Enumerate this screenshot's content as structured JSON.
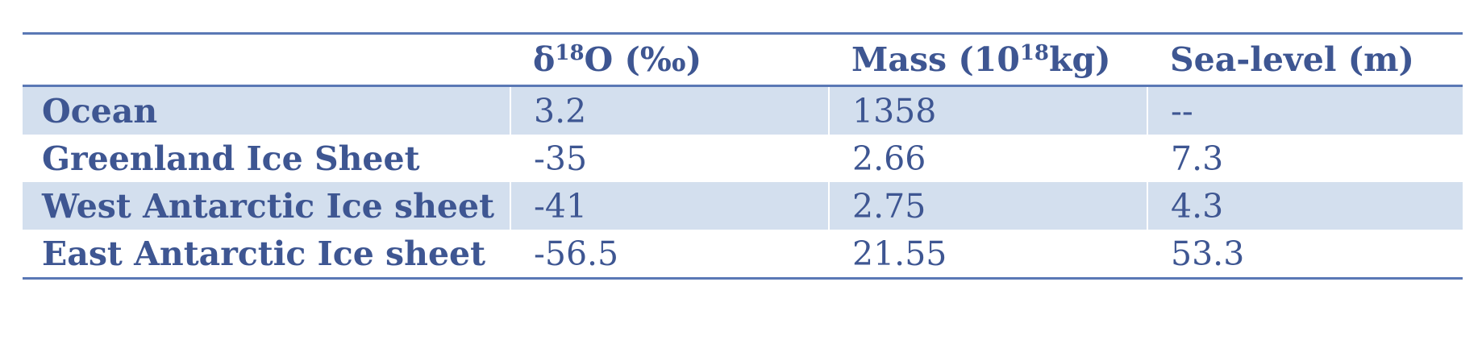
{
  "table": {
    "headers": {
      "col0": "",
      "col1_main": "δ",
      "col1_sup": "18",
      "col1_rest": "O (‰)",
      "col2_main": "Mass (10",
      "col2_sup": "18",
      "col2_rest": "kg)",
      "col3": "Sea-level (m)"
    },
    "rows": [
      {
        "name": "Ocean",
        "d18o": "3.2",
        "mass": "1358",
        "sea_level": "--"
      },
      {
        "name": "Greenland Ice Sheet",
        "d18o": "-35",
        "mass": "2.66",
        "sea_level": "7.3"
      },
      {
        "name": "West Antarctic Ice sheet",
        "d18o": "-41",
        "mass": "2.75",
        "sea_level": "4.3"
      },
      {
        "name": "East Antarctic Ice sheet",
        "d18o": "-56.5",
        "mass": "21.55",
        "sea_level": "53.3"
      }
    ]
  },
  "colors": {
    "text": "#3e5692",
    "rule": "#5a78b5",
    "band": "#d3dfee"
  }
}
